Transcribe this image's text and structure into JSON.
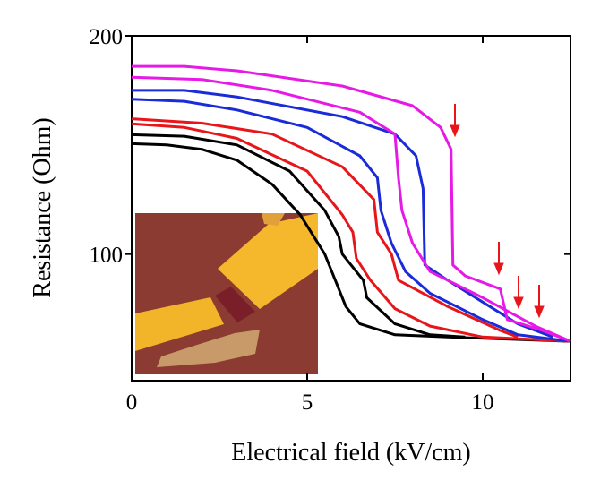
{
  "chart_data": {
    "type": "line",
    "x_label": "Electrical field (kV/cm)",
    "y_label": "Resistance (Ohm)",
    "xlim": [
      0,
      12.5
    ],
    "ylim": [
      42,
      200
    ],
    "xticks": [
      0,
      5,
      10
    ],
    "yticks": [
      100,
      200
    ],
    "series": [
      {
        "color": "#000000",
        "x": [
          0,
          1,
          2,
          3,
          4,
          4.8,
          5.5,
          5.8,
          6.1,
          6.5,
          7.5,
          9,
          12.5
        ],
        "values": [
          150.6,
          150,
          148,
          143,
          132,
          118,
          100,
          88,
          76,
          68,
          63,
          62,
          60
        ]
      },
      {
        "color": "#000000",
        "x": [
          0,
          1.5,
          3,
          4.5,
          5.5,
          5.9,
          6.0,
          6.6,
          6.7,
          7.5,
          8.5,
          9.5
        ],
        "values": [
          154.7,
          154,
          150,
          138,
          120,
          108,
          100,
          88,
          80,
          68,
          63,
          62
        ]
      },
      {
        "color": "#e8161b",
        "x": [
          0,
          1.5,
          3,
          5,
          6,
          6.3,
          6.4,
          6.8,
          7.5,
          8.5,
          10,
          12.5
        ],
        "values": [
          159.7,
          158,
          153,
          138,
          118,
          110,
          98,
          88,
          75,
          67,
          62,
          60
        ]
      },
      {
        "color": "#e8161b",
        "x": [
          0,
          2,
          4,
          6,
          6.9,
          7.0,
          7.4,
          7.6,
          9,
          10.5,
          11
        ],
        "values": [
          162,
          160,
          155,
          140,
          125,
          110,
          100,
          88,
          76,
          65,
          62
        ]
      },
      {
        "color": "#1a2bd8",
        "x": [
          0,
          1.5,
          3,
          5,
          6.5,
          7,
          7.1,
          7.4,
          7.8,
          8.5,
          10,
          11,
          12.5
        ],
        "values": [
          171,
          170,
          166,
          158,
          145,
          135,
          120,
          105,
          92,
          82,
          70,
          63,
          60
        ]
      },
      {
        "color": "#1a2bd8",
        "x": [
          0,
          1.5,
          3,
          6,
          7.5,
          8.1,
          8.3,
          8.35,
          9,
          10,
          11,
          12
        ],
        "values": [
          175,
          175,
          172,
          163,
          155,
          145,
          130,
          95,
          88,
          78,
          68,
          62
        ]
      },
      {
        "color": "#e619e6",
        "x": [
          0,
          2,
          4,
          6.5,
          7.5,
          7.6,
          7.7,
          8,
          8.5,
          10,
          11.5,
          12.5
        ],
        "values": [
          181,
          180,
          175,
          165,
          155,
          135,
          120,
          105,
          92,
          80,
          67,
          60
        ]
      },
      {
        "color": "#e619e6",
        "x": [
          0,
          1.5,
          3,
          6,
          8,
          8.8,
          9.1,
          9.15,
          9.5,
          10.5,
          10.7,
          11.7,
          12.5
        ],
        "values": [
          186,
          186,
          184,
          177,
          168,
          158,
          148,
          95,
          90,
          84,
          70,
          65,
          60
        ]
      }
    ]
  }
}
